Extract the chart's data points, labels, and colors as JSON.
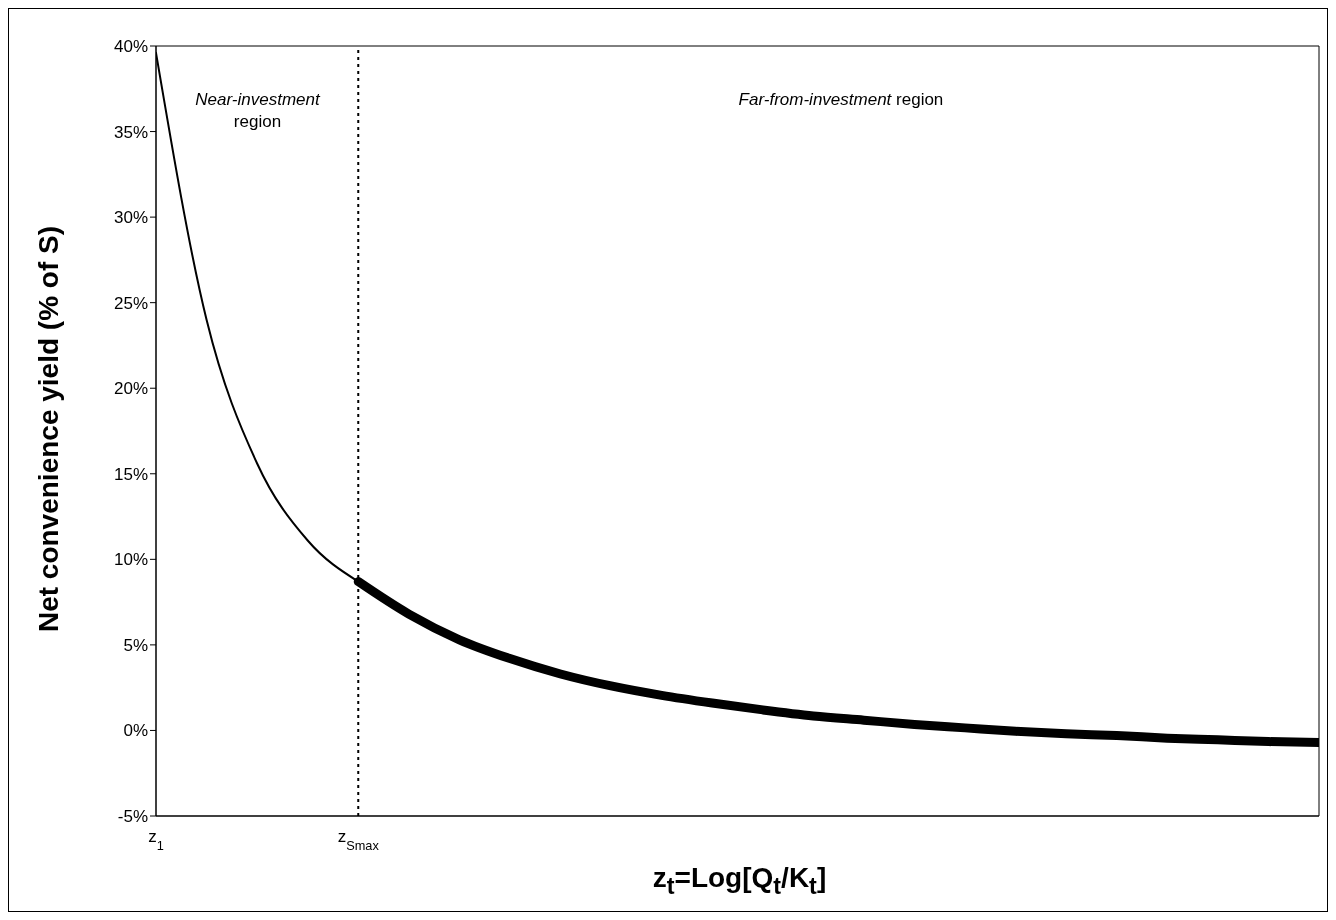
{
  "chart_data": {
    "type": "line",
    "xlabel": "z$_{t}$=Log[Q$_{t}$/K$_{t}$]",
    "ylabel": "Net convenience yield (% of S)",
    "categories": [
      "z$_{1}$",
      null,
      null,
      null,
      "z$_{Smax}$",
      null,
      null,
      null,
      null,
      null,
      null,
      null,
      null,
      null,
      null,
      null,
      null,
      null,
      null,
      null,
      null,
      null,
      null,
      null
    ],
    "series": [
      {
        "color": "#000000",
        "values": [
          39.6,
          24.0,
          15.6,
          11.1,
          8.7,
          null,
          null,
          null,
          null,
          null,
          null,
          null,
          null,
          null,
          null,
          null,
          null,
          null,
          null,
          null,
          null,
          null,
          null,
          null
        ]
      },
      {
        "color": "#000000",
        "values": [
          null,
          null,
          null,
          null,
          8.7,
          6.8,
          5.3,
          4.2,
          3.3,
          2.6,
          2.05,
          1.6,
          1.2,
          0.85,
          0.6,
          0.35,
          0.15,
          -0.05,
          -0.2,
          -0.3,
          -0.45,
          -0.55,
          -0.65,
          -0.7
        ]
      }
    ],
    "ylim": [
      -5,
      40
    ],
    "yticks": [
      {
        "value": -5,
        "label": "-5%"
      },
      {
        "value": 0,
        "label": "0%"
      },
      {
        "value": 5,
        "label": "5%"
      },
      {
        "value": 10,
        "label": "10%"
      },
      {
        "value": 15,
        "label": "15%"
      },
      {
        "value": 20,
        "label": "20%"
      },
      {
        "value": 25,
        "label": "25%"
      },
      {
        "value": 30,
        "label": "30%"
      },
      {
        "value": 35,
        "label": "35%"
      },
      {
        "value": 40,
        "label": "40%"
      }
    ],
    "grid": false,
    "legend": false,
    "ref_lines": [
      {
        "axis": "x",
        "value": "z$_{Smax}$",
        "color": "#000000",
        "line_style": "dotted"
      }
    ],
    "annotations": [
      "Near-investment region",
      "Far-from-investment region"
    ]
  }
}
